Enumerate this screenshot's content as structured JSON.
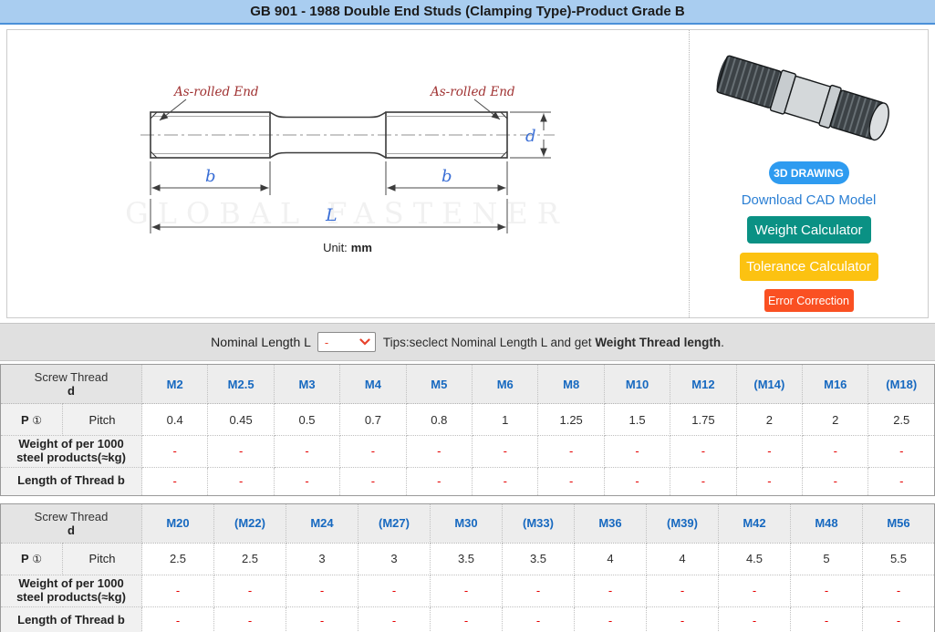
{
  "title": "GB 901 - 1988 Double End Studs (Clamping Type)-Product Grade B",
  "drawing": {
    "as_rolled_left": "As-rolled End",
    "as_rolled_right": "As-rolled End",
    "dim_b_left": "b",
    "dim_b_right": "b",
    "dim_length": "L",
    "dim_diameter": "d",
    "unit_label": "Unit:",
    "unit_value": "mm",
    "watermark": "GLOBAL FASTENER"
  },
  "side_panel": {
    "btn_3d": "3D DRAWING",
    "link_cad": "Download CAD Model",
    "btn_weight": "Weight Calculator",
    "btn_tolerance": "Tolerance Calculator",
    "btn_error": "Error Correction",
    "colors": {
      "btn_3d": "#2e9bf0",
      "link_cad": "#2a7fd4",
      "btn_weight": "#0a9184",
      "btn_tolerance": "#fcc211",
      "btn_error": "#fa5022",
      "title_bar": "#a9cdf0",
      "header_blue": "#1769c0",
      "dash_red": "#e60000"
    }
  },
  "selector_bar": {
    "label": "Nominal Length L",
    "select_value": "-",
    "tips_prefix": "Tips:seclect Nominal Length L and get ",
    "tips_bold": "Weight Thread length",
    "tips_suffix": "."
  },
  "row_labels": {
    "corner_line1": "Screw Thread",
    "corner_line2": "d",
    "p": "P",
    "p_sup": "①",
    "pitch": "Pitch",
    "weight": "Weight of per 1000 steel products(≈kg)",
    "length": "Length of Thread b"
  },
  "tables": [
    {
      "columns": [
        "M2",
        "M2.5",
        "M3",
        "M4",
        "M5",
        "M6",
        "M8",
        "M10",
        "M12",
        "(M14)",
        "M16",
        "(M18)"
      ],
      "pitch": [
        "0.4",
        "0.45",
        "0.5",
        "0.7",
        "0.8",
        "1",
        "1.25",
        "1.5",
        "1.75",
        "2",
        "2",
        "2.5"
      ],
      "weight": [
        "-",
        "-",
        "-",
        "-",
        "-",
        "-",
        "-",
        "-",
        "-",
        "-",
        "-",
        "-"
      ],
      "thread_length": [
        "-",
        "-",
        "-",
        "-",
        "-",
        "-",
        "-",
        "-",
        "-",
        "-",
        "-",
        "-"
      ]
    },
    {
      "columns": [
        "M20",
        "(M22)",
        "M24",
        "(M27)",
        "M30",
        "(M33)",
        "M36",
        "(M39)",
        "M42",
        "M48",
        "M56"
      ],
      "pitch": [
        "2.5",
        "2.5",
        "3",
        "3",
        "3.5",
        "3.5",
        "4",
        "4",
        "4.5",
        "5",
        "5.5"
      ],
      "weight": [
        "-",
        "-",
        "-",
        "-",
        "-",
        "-",
        "-",
        "-",
        "-",
        "-",
        "-"
      ],
      "thread_length": [
        "-",
        "-",
        "-",
        "-",
        "-",
        "-",
        "-",
        "-",
        "-",
        "-",
        "-"
      ]
    }
  ]
}
